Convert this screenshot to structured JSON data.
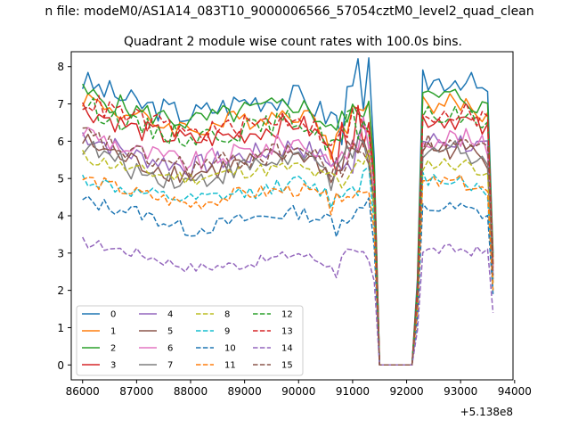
{
  "chart_data": {
    "type": "line",
    "suptitle": "n file: modeM0/AS1A14_083T10_9000006566_57054cztM0_level2_quad_clean",
    "title": "Quadrant 2 module wise count rates with 100.0s bins.",
    "xlabel": "",
    "ylabel": "",
    "x_offset_label": "+5.138e8",
    "xlim": [
      85790,
      93970
    ],
    "ylim": [
      -0.4,
      8.4
    ],
    "xticks": [
      86000,
      87000,
      88000,
      89000,
      90000,
      91000,
      92000,
      93000,
      94000
    ],
    "xtick_labels": [
      "86000",
      "87000",
      "88000",
      "89000",
      "90000",
      "91000",
      "92000",
      "93000",
      "94000"
    ],
    "yticks": [
      0,
      1,
      2,
      3,
      4,
      5,
      6,
      7,
      8
    ],
    "ytick_labels": [
      "0",
      "1",
      "2",
      "3",
      "4",
      "5",
      "6",
      "7",
      "8"
    ],
    "grid": false,
    "legend_position": "lower-left",
    "series": [
      {
        "name": "0",
        "color": "#1f77b4",
        "dash": "solid",
        "levels": [
          7.6,
          7.0,
          6.7,
          7.1,
          7.2,
          6.5,
          7.4,
          7.7,
          7.2
        ],
        "fluct": 0.35,
        "end": 3.0
      },
      {
        "name": "1",
        "color": "#ff7f0e",
        "dash": "solid",
        "levels": [
          7.2,
          6.6,
          6.3,
          6.6,
          6.8,
          6.1,
          7.0,
          7.0,
          6.6
        ],
        "fluct": 0.3,
        "end": 2.8
      },
      {
        "name": "2",
        "color": "#2ca02c",
        "dash": "solid",
        "levels": [
          7.3,
          6.8,
          6.5,
          6.8,
          7.0,
          6.3,
          7.1,
          7.2,
          6.8
        ],
        "fluct": 0.3,
        "end": 2.9
      },
      {
        "name": "3",
        "color": "#d62728",
        "dash": "solid",
        "levels": [
          6.9,
          6.3,
          6.0,
          6.2,
          6.5,
          5.8,
          6.6,
          6.6,
          6.2
        ],
        "fluct": 0.3,
        "end": 2.6
      },
      {
        "name": "4",
        "color": "#9467bd",
        "dash": "solid",
        "levels": [
          6.2,
          5.6,
          5.3,
          5.6,
          5.9,
          5.3,
          6.0,
          6.0,
          5.7
        ],
        "fluct": 0.3,
        "end": 2.4
      },
      {
        "name": "5",
        "color": "#8c564b",
        "dash": "solid",
        "levels": [
          6.0,
          5.4,
          5.1,
          5.4,
          5.7,
          5.1,
          5.8,
          5.8,
          5.5
        ],
        "fluct": 0.3,
        "end": 2.3
      },
      {
        "name": "6",
        "color": "#e377c2",
        "dash": "solid",
        "levels": [
          6.3,
          5.7,
          5.4,
          5.7,
          6.0,
          5.4,
          6.1,
          6.1,
          5.8
        ],
        "fluct": 0.3,
        "end": 2.5
      },
      {
        "name": "7",
        "color": "#7f7f7f",
        "dash": "solid",
        "levels": [
          5.9,
          5.2,
          4.9,
          5.3,
          5.6,
          5.0,
          5.7,
          5.8,
          5.5
        ],
        "fluct": 0.3,
        "end": 2.2
      },
      {
        "name": "8",
        "color": "#bcbd22",
        "dash": "dash",
        "levels": [
          5.6,
          5.2,
          5.0,
          5.2,
          5.3,
          4.9,
          5.4,
          5.4,
          5.2
        ],
        "fluct": 0.2,
        "end": 2.2
      },
      {
        "name": "9",
        "color": "#17becf",
        "dash": "dash",
        "levels": [
          5.0,
          4.6,
          4.4,
          4.6,
          4.9,
          4.5,
          5.0,
          5.0,
          4.5
        ],
        "fluct": 0.2,
        "end": 2.0
      },
      {
        "name": "10",
        "color": "#1f77b4",
        "dash": "dash",
        "levels": [
          4.4,
          4.1,
          3.6,
          3.9,
          4.1,
          3.8,
          4.2,
          4.2,
          4.0
        ],
        "fluct": 0.2,
        "end": 1.9
      },
      {
        "name": "11",
        "color": "#ff7f0e",
        "dash": "dash",
        "levels": [
          5.0,
          4.6,
          4.3,
          4.6,
          4.7,
          4.4,
          4.8,
          4.9,
          4.6
        ],
        "fluct": 0.2,
        "end": 2.0
      },
      {
        "name": "12",
        "color": "#2ca02c",
        "dash": "dash",
        "levels": [
          7.0,
          6.4,
          6.1,
          6.3,
          6.6,
          5.8,
          6.5,
          6.7,
          6.4
        ],
        "fluct": 0.3,
        "end": 2.7
      },
      {
        "name": "13",
        "color": "#d62728",
        "dash": "dash",
        "levels": [
          7.1,
          6.6,
          6.2,
          6.4,
          6.7,
          5.9,
          6.6,
          6.8,
          6.5
        ],
        "fluct": 0.3,
        "end": 2.7
      },
      {
        "name": "14",
        "color": "#9467bd",
        "dash": "dash",
        "levels": [
          3.3,
          3.0,
          2.6,
          2.7,
          3.0,
          2.6,
          3.0,
          3.1,
          3.0
        ],
        "fluct": 0.15,
        "end": 1.4
      },
      {
        "name": "15",
        "color": "#8c564b",
        "dash": "dash",
        "levels": [
          6.2,
          5.6,
          5.3,
          5.5,
          5.8,
          5.2,
          5.9,
          5.9,
          5.6
        ],
        "fluct": 0.3,
        "end": 2.4
      }
    ]
  }
}
